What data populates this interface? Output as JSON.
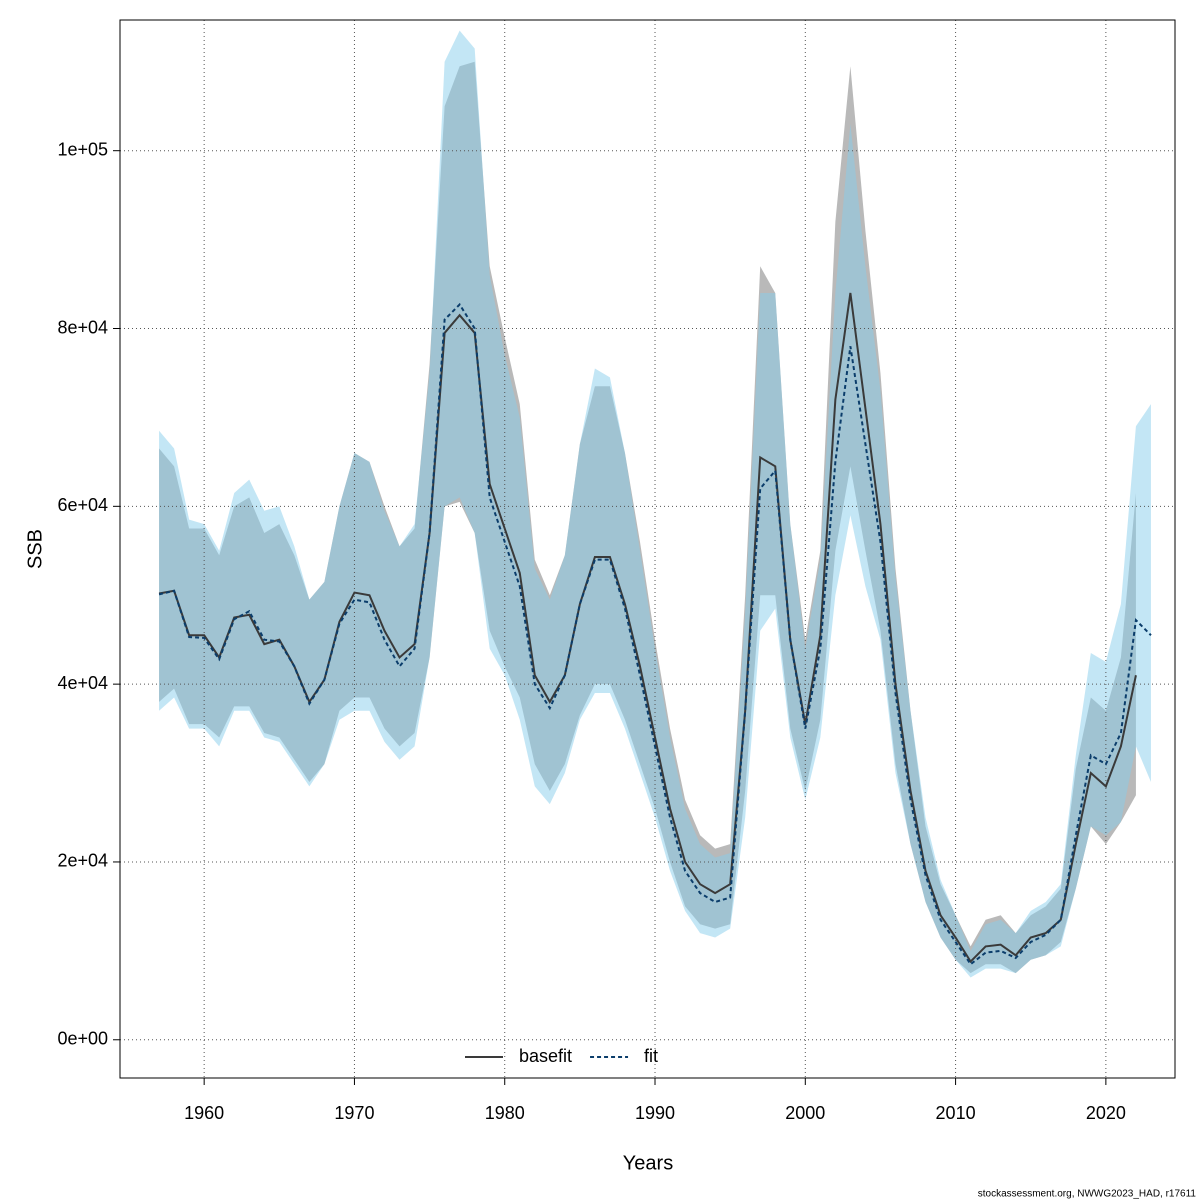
{
  "chart_data": {
    "type": "line",
    "xlabel": "Years",
    "ylabel": "SSB",
    "footnote": "stockassessment.org, NWWG2023_HAD, r17611",
    "grid": true,
    "legend": "bottom",
    "xlim": [
      1954.4,
      2024.6
    ],
    "ylim": [
      -4300,
      114700
    ],
    "xticks": [
      1960,
      1970,
      1980,
      1990,
      2000,
      2010,
      2020
    ],
    "yticks": [
      {
        "value": 0,
        "label": "0e+00"
      },
      {
        "value": 20000,
        "label": "2e+04"
      },
      {
        "value": 40000,
        "label": "4e+04"
      },
      {
        "value": 60000,
        "label": "6e+04"
      },
      {
        "value": 80000,
        "label": "8e+04"
      },
      {
        "value": 100000,
        "label": "1e+05"
      }
    ],
    "x": [
      1957,
      1958,
      1959,
      1960,
      1961,
      1962,
      1963,
      1964,
      1965,
      1966,
      1967,
      1968,
      1969,
      1970,
      1971,
      1972,
      1973,
      1974,
      1975,
      1976,
      1977,
      1978,
      1979,
      1980,
      1981,
      1982,
      1983,
      1984,
      1985,
      1986,
      1987,
      1988,
      1989,
      1990,
      1991,
      1992,
      1993,
      1994,
      1995,
      1996,
      1997,
      1998,
      1999,
      2000,
      2001,
      2002,
      2003,
      2004,
      2005,
      2006,
      2007,
      2008,
      2009,
      2010,
      2011,
      2012,
      2013,
      2014,
      2015,
      2016,
      2017,
      2018,
      2019,
      2020,
      2021,
      2022,
      2023
    ],
    "series": [
      {
        "name": "basefit",
        "color": "#3a3a3a",
        "band_color": "rgba(128,128,128,0.55)",
        "linestyle": "solid",
        "values": [
          50200,
          50500,
          45500,
          45500,
          43000,
          47500,
          47800,
          44500,
          45000,
          42000,
          38000,
          40500,
          47000,
          50300,
          50000,
          46000,
          43000,
          44500,
          57000,
          79500,
          81500,
          79500,
          62500,
          57500,
          52500,
          41000,
          38000,
          41000,
          49000,
          54300,
          54300,
          49000,
          42000,
          34000,
          26000,
          20000,
          17500,
          16500,
          17500,
          37000,
          65500,
          64500,
          45000,
          35500,
          45500,
          72000,
          84000,
          71000,
          58000,
          40000,
          28000,
          19000,
          14000,
          11500,
          8800,
          10500,
          10700,
          9500,
          11500,
          12000,
          13500,
          22000,
          30000,
          28500,
          33000,
          41000,
          null
        ],
        "upper": [
          66500,
          64500,
          57500,
          57500,
          54500,
          60000,
          61000,
          57000,
          58000,
          54500,
          49500,
          51500,
          60000,
          66000,
          65000,
          60000,
          55500,
          57500,
          76000,
          105000,
          109500,
          110000,
          87000,
          79000,
          71500,
          54000,
          50000,
          54500,
          67000,
          73500,
          73500,
          66000,
          56000,
          45000,
          35000,
          27000,
          23000,
          21500,
          22000,
          50000,
          87000,
          84000,
          58000,
          45000,
          55000,
          92000,
          109500,
          91000,
          75000,
          53000,
          37000,
          24000,
          17500,
          14000,
          10500,
          13500,
          14000,
          12000,
          14000,
          15000,
          17000,
          30500,
          38500,
          37000,
          43000,
          61500,
          null
        ],
        "lower": [
          38000,
          39500,
          35500,
          35500,
          34000,
          37500,
          37500,
          34500,
          34000,
          31500,
          29000,
          31000,
          37000,
          38500,
          38500,
          35000,
          33000,
          34500,
          43000,
          60000,
          60500,
          57000,
          46000,
          42000,
          38500,
          31000,
          28000,
          31000,
          36500,
          40000,
          40000,
          36000,
          31000,
          26000,
          20000,
          15000,
          13000,
          12500,
          13000,
          28000,
          50000,
          50000,
          35000,
          28000,
          36000,
          55000,
          64500,
          55000,
          46000,
          31000,
          22000,
          15500,
          11500,
          9000,
          7500,
          8500,
          8500,
          7500,
          9000,
          9500,
          11000,
          17000,
          24000,
          22000,
          24500,
          27500,
          null
        ]
      },
      {
        "name": "fit",
        "color": "#0b3d6b",
        "band_color": "rgba(135,206,235,0.5)",
        "linestyle": "dashed",
        "values": [
          50100,
          50500,
          45300,
          45200,
          42800,
          47300,
          48200,
          45000,
          44800,
          42000,
          37800,
          40500,
          46800,
          49500,
          49200,
          45000,
          42000,
          44000,
          57000,
          81000,
          82700,
          80000,
          61000,
          56000,
          51000,
          40000,
          37300,
          41000,
          49000,
          54000,
          54000,
          48500,
          41000,
          33000,
          25000,
          19000,
          16500,
          15500,
          16000,
          37000,
          62000,
          64000,
          45000,
          35000,
          44000,
          65000,
          78000,
          67000,
          56000,
          39000,
          27000,
          18500,
          13500,
          11000,
          8500,
          9800,
          10000,
          9200,
          11000,
          11800,
          13500,
          23000,
          32000,
          31000,
          34500,
          47200,
          45500
        ],
        "upper": [
          68500,
          66500,
          58500,
          58000,
          55000,
          61500,
          63000,
          59500,
          60000,
          55500,
          49500,
          51500,
          60000,
          66000,
          65000,
          59500,
          55500,
          58000,
          75000,
          110000,
          113500,
          111500,
          86000,
          77000,
          70000,
          53000,
          49500,
          54500,
          67000,
          75500,
          74500,
          66000,
          55000,
          44000,
          34000,
          26000,
          22000,
          20500,
          21000,
          48000,
          84000,
          84000,
          58000,
          44000,
          54000,
          84000,
          103000,
          87000,
          73000,
          52000,
          37000,
          25000,
          18000,
          14000,
          10000,
          13000,
          13500,
          12000,
          14500,
          15500,
          17500,
          32000,
          43500,
          42500,
          49000,
          69000,
          71500
        ],
        "lower": [
          37000,
          38500,
          35000,
          35000,
          33000,
          37000,
          37000,
          34000,
          33500,
          31000,
          28500,
          31000,
          36000,
          37000,
          37000,
          33500,
          31500,
          33000,
          43000,
          60000,
          61000,
          57000,
          44000,
          41000,
          36000,
          28500,
          26500,
          30000,
          36000,
          39000,
          39000,
          35000,
          30000,
          25000,
          19000,
          14500,
          12000,
          11500,
          12500,
          25000,
          46000,
          48500,
          34000,
          27000,
          34000,
          50000,
          59000,
          51000,
          45000,
          30000,
          22000,
          15500,
          11500,
          9000,
          7000,
          8000,
          8000,
          7500,
          9000,
          9500,
          10500,
          17000,
          24000,
          23000,
          24500,
          33000,
          29000
        ]
      }
    ]
  }
}
